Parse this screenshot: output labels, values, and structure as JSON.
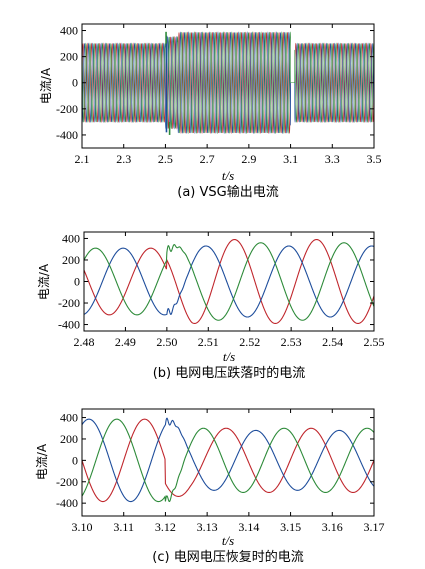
{
  "chart_data": [
    {
      "type": "line",
      "caption": "(a) VSG输出电流",
      "xlabel": "t/s",
      "ylabel": "电流/A",
      "xlim": [
        2.1,
        3.5
      ],
      "ylim": [
        -500,
        450
      ],
      "xticks": [
        "2.1",
        "2.3",
        "2.5",
        "2.7",
        "2.9",
        "3.1",
        "3.3",
        "3.5"
      ],
      "yticks": [
        "400",
        "200",
        "0",
        "-200",
        "-400"
      ],
      "grid": false,
      "legend": "none",
      "series": [
        {
          "color": "#c0272d",
          "phase_deg": 0
        },
        {
          "color": "#1f4e9c",
          "phase_deg": -120
        },
        {
          "color": "#2e8b3a",
          "phase_deg": 120
        }
      ],
      "segments": [
        {
          "t": [
            2.1,
            2.5
          ],
          "amplitude": 300
        },
        {
          "t": [
            2.5,
            2.52
          ],
          "amplitude": 300,
          "transient_peak": 380
        },
        {
          "t": [
            2.52,
            2.56
          ],
          "amplitude": 350
        },
        {
          "t": [
            2.56,
            3.1
          ],
          "amplitude": 385
        },
        {
          "t": [
            3.1,
            3.12
          ],
          "amplitude": 0
        },
        {
          "t": [
            3.12,
            3.5
          ],
          "amplitude": 300
        }
      ],
      "frequency_hz": 50
    },
    {
      "type": "line",
      "caption": "(b) 电网电压跌落时的电流",
      "xlabel": "t/s",
      "ylabel": "电流/A",
      "xlim": [
        2.48,
        2.55
      ],
      "ylim": [
        -460,
        460
      ],
      "xticks": [
        "2.48",
        "2.49",
        "2.50",
        "2.51",
        "2.52",
        "2.53",
        "2.54",
        "2.55"
      ],
      "yticks": [
        "400",
        "200",
        "0",
        "-200",
        "-400"
      ],
      "grid": false,
      "legend": "none",
      "frequency_hz": 50,
      "event_t": 2.5,
      "series": [
        {
          "color": "#c0272d",
          "phase_deg": -200,
          "amp_before": 310,
          "amp_after": 390
        },
        {
          "color": "#1f4e9c",
          "phase_deg": -80,
          "amp_before": 310,
          "amp_after": 330
        },
        {
          "color": "#2e8b3a",
          "phase_deg": 40,
          "amp_before": 310,
          "amp_after": 360
        }
      ]
    },
    {
      "type": "line",
      "caption": "(c) 电网电压恢复时的电流",
      "xlabel": "t/s",
      "ylabel": "电流/A",
      "xlim": [
        3.1,
        3.17
      ],
      "ylim": [
        -520,
        480
      ],
      "xticks": [
        "3.10",
        "3.11",
        "3.12",
        "3.13",
        "3.14",
        "3.15",
        "3.16",
        "3.17"
      ],
      "yticks": [
        "400",
        "200",
        "0",
        "-200",
        "-400"
      ],
      "grid": false,
      "legend": "none",
      "frequency_hz": 50,
      "event_t": 3.12,
      "series": [
        {
          "color": "#c0272d",
          "phase_deg": 180,
          "amp_before": 385,
          "amp_after": 300
        },
        {
          "color": "#1f4e9c",
          "phase_deg": 60,
          "amp_before": 385,
          "amp_after": 280
        },
        {
          "color": "#2e8b3a",
          "phase_deg": -60,
          "amp_before": 385,
          "amp_after": 300
        }
      ]
    }
  ]
}
